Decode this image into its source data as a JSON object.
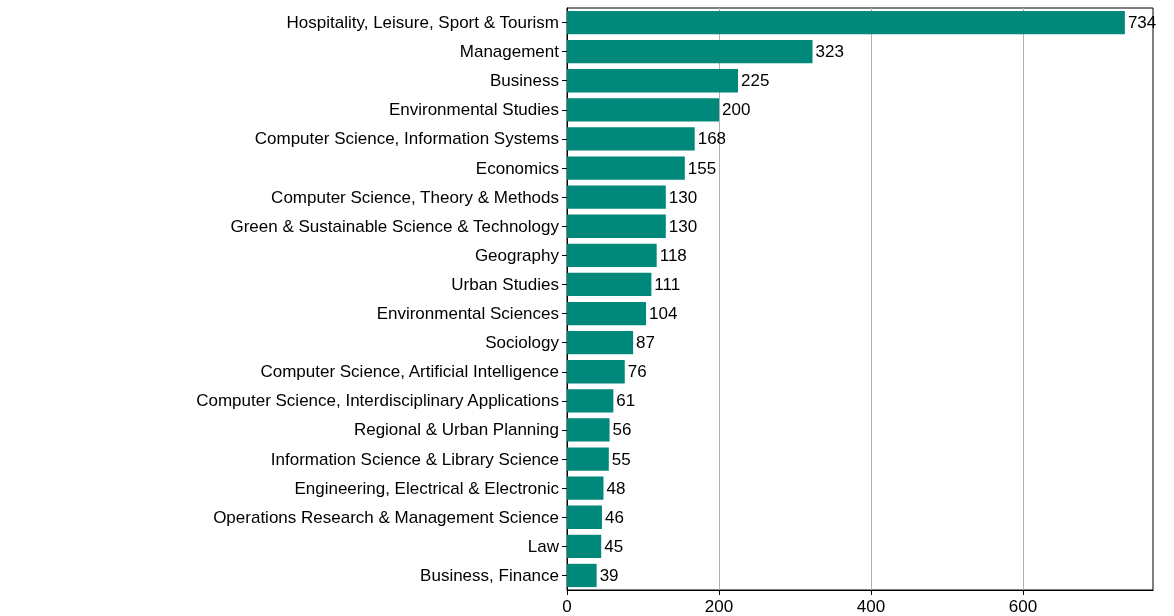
{
  "chart_data": {
    "type": "bar",
    "orientation": "horizontal",
    "categories": [
      "Hospitality, Leisure, Sport & Tourism",
      "Management",
      "Business",
      "Environmental Studies",
      "Computer Science, Information Systems",
      "Economics",
      "Computer Science, Theory & Methods",
      "Green & Sustainable Science & Technology",
      "Geography",
      "Urban Studies",
      "Environmental Sciences",
      "Sociology",
      "Computer Science, Artificial Intelligence",
      "Computer Science, Interdisciplinary Applications",
      "Regional & Urban Planning",
      "Information Science & Library Science",
      "Engineering, Electrical & Electronic",
      "Operations Research & Management Science",
      "Law",
      "Business, Finance"
    ],
    "values": [
      734,
      323,
      225,
      200,
      168,
      155,
      130,
      130,
      118,
      111,
      104,
      87,
      76,
      61,
      56,
      55,
      48,
      46,
      45,
      39
    ],
    "color": "#00897b",
    "xlim": [
      0,
      771
    ],
    "xticks": [
      0,
      200,
      400,
      600
    ],
    "grid": "x",
    "data_labels": true
  }
}
